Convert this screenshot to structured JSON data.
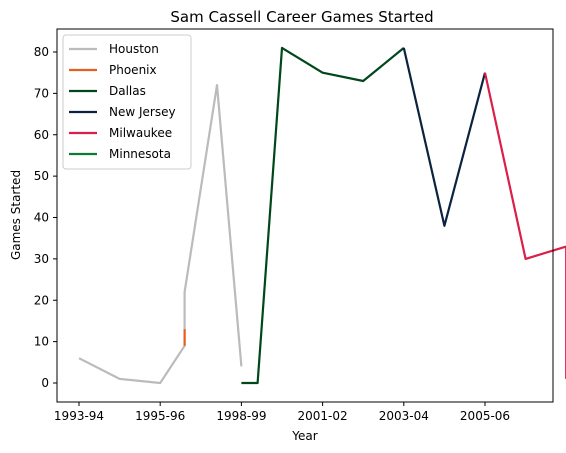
{
  "chart_data": {
    "type": "line",
    "title": "Sam Cassell Career Games Started",
    "xlabel": "Year",
    "ylabel": "Games Started",
    "x_ticks": [
      {
        "label": "1993-94",
        "x": 0
      },
      {
        "label": "1995-96",
        "x": 2
      },
      {
        "label": "1998-99",
        "x": 4
      },
      {
        "label": "2001-02",
        "x": 6
      },
      {
        "label": "2003-04",
        "x": 8
      },
      {
        "label": "2005-06",
        "x": 10
      }
    ],
    "y_ticks": [
      0,
      10,
      20,
      30,
      40,
      50,
      60,
      70,
      80
    ],
    "xlim": [
      -0.2,
      11.2
    ],
    "ylim": [
      -4,
      85
    ],
    "legend": "top-left",
    "grid": false,
    "series": [
      {
        "name": "Houston",
        "color": "#bbbbbb",
        "points": [
          [
            0,
            6
          ],
          [
            1,
            1
          ],
          [
            2,
            0
          ],
          [
            2.6,
            9
          ],
          [
            2.6,
            22
          ],
          [
            3.4,
            72
          ],
          [
            4,
            4
          ]
        ]
      },
      {
        "name": "Phoenix",
        "color": "#e56020",
        "points": [
          [
            2.6,
            9
          ],
          [
            2.6,
            13
          ]
        ]
      },
      {
        "name": "Dallas",
        "color": "#00471b",
        "points": [
          [
            4,
            0
          ],
          [
            4.4,
            0
          ],
          [
            5,
            81
          ],
          [
            6,
            75
          ],
          [
            7,
            73
          ],
          [
            8,
            81
          ]
        ]
      },
      {
        "name": "New Jersey",
        "color": "#0c2340",
        "points": [
          [
            8,
            81
          ],
          [
            9,
            38
          ],
          [
            10,
            75
          ]
        ]
      },
      {
        "name": "Milwaukee",
        "color": "#dc1e4b",
        "points": [
          [
            10,
            75
          ],
          [
            11,
            30
          ],
          [
            12,
            33
          ],
          [
            12,
            1
          ]
        ]
      },
      {
        "name": "Minnesota",
        "color": "#0b7a3b",
        "points": []
      }
    ]
  }
}
